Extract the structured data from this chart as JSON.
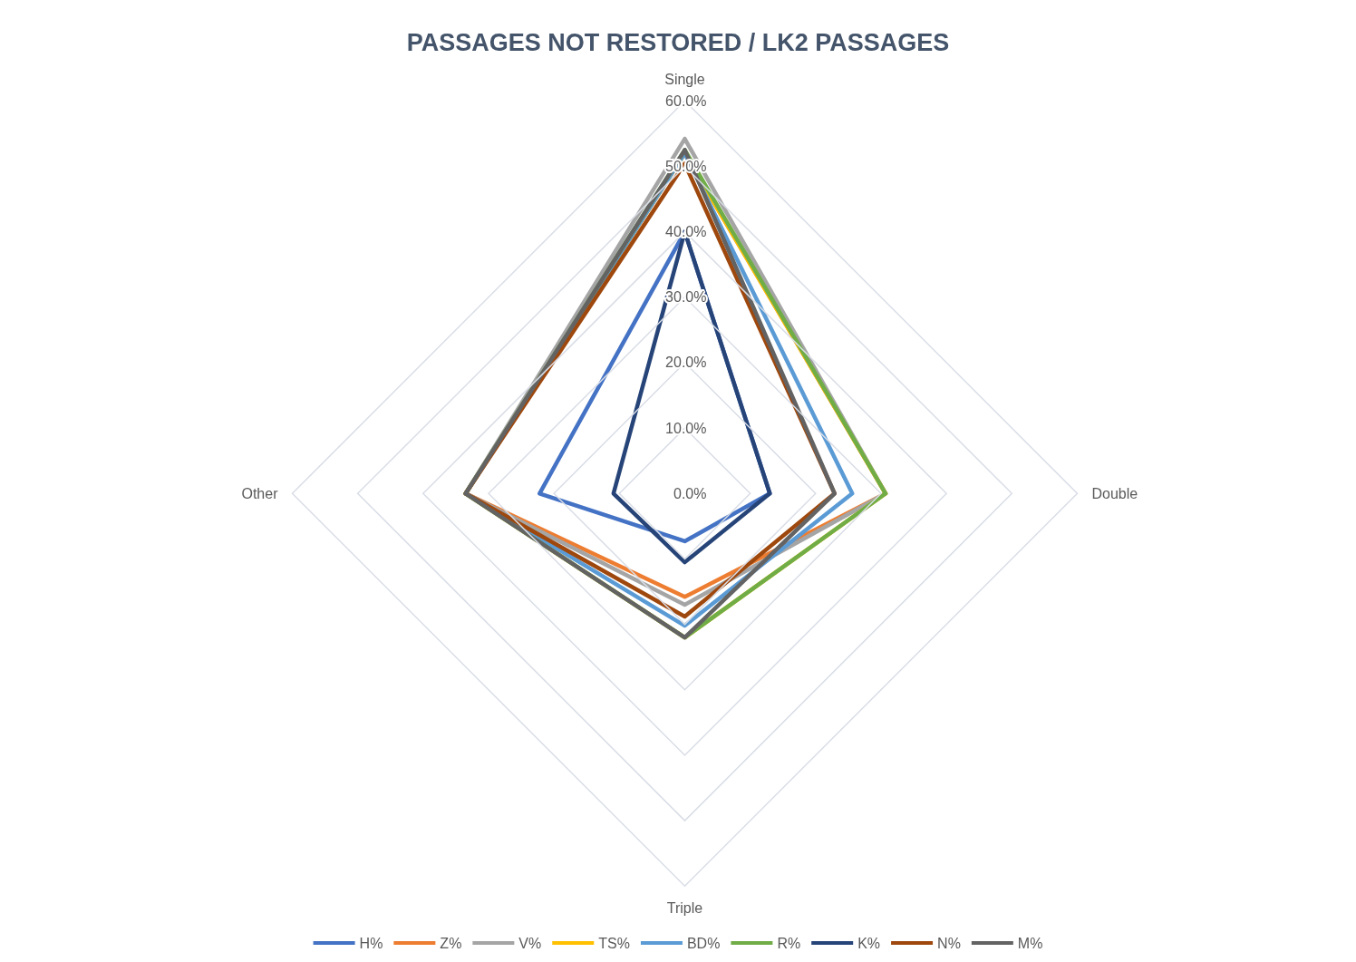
{
  "chart_data": {
    "type": "radar",
    "title": "PASSAGES NOT RESTORED / LK2 PASSAGES",
    "categories": [
      "Single",
      "Double",
      "Triple",
      "Other"
    ],
    "ylim": [
      0,
      60
    ],
    "yticks": [
      {
        "value": 0,
        "label": "0.0%"
      },
      {
        "value": 10,
        "label": "10.0%"
      },
      {
        "value": 20,
        "label": "20.0%"
      },
      {
        "value": 30,
        "label": "30.0%"
      },
      {
        "value": 40,
        "label": "40.0%"
      },
      {
        "value": 50,
        "label": "50.0%"
      },
      {
        "value": 60,
        "label": "60.0%"
      }
    ],
    "grid": true,
    "legend": "bottom",
    "marker": "none",
    "line_style": "solid",
    "series": [
      {
        "name": "H%",
        "color": "#4472c4",
        "values": [
          40,
          13,
          7.3,
          22.2
        ]
      },
      {
        "name": "Z%",
        "color": "#ed7d31",
        "values": [
          52,
          30.7,
          15.8,
          33.5
        ]
      },
      {
        "name": "V%",
        "color": "#a5a5a5",
        "values": [
          54.2,
          30.7,
          17,
          33.5
        ]
      },
      {
        "name": "TS%",
        "color": "#ffc000",
        "values": [
          52,
          30.7,
          22,
          33.5
        ]
      },
      {
        "name": "BD%",
        "color": "#5b9bd5",
        "values": [
          52,
          25.6,
          20.2,
          33.5
        ]
      },
      {
        "name": "R%",
        "color": "#70ad47",
        "values": [
          52.5,
          30.7,
          22,
          33.5
        ]
      },
      {
        "name": "K%",
        "color": "#264478",
        "values": [
          40,
          13,
          10.5,
          10.9
        ]
      },
      {
        "name": "N%",
        "color": "#9e480e",
        "values": [
          50.4,
          22.9,
          18.8,
          33.5
        ]
      },
      {
        "name": "M%",
        "color": "#636363",
        "values": [
          52.5,
          22.9,
          22,
          33.5
        ]
      }
    ]
  }
}
